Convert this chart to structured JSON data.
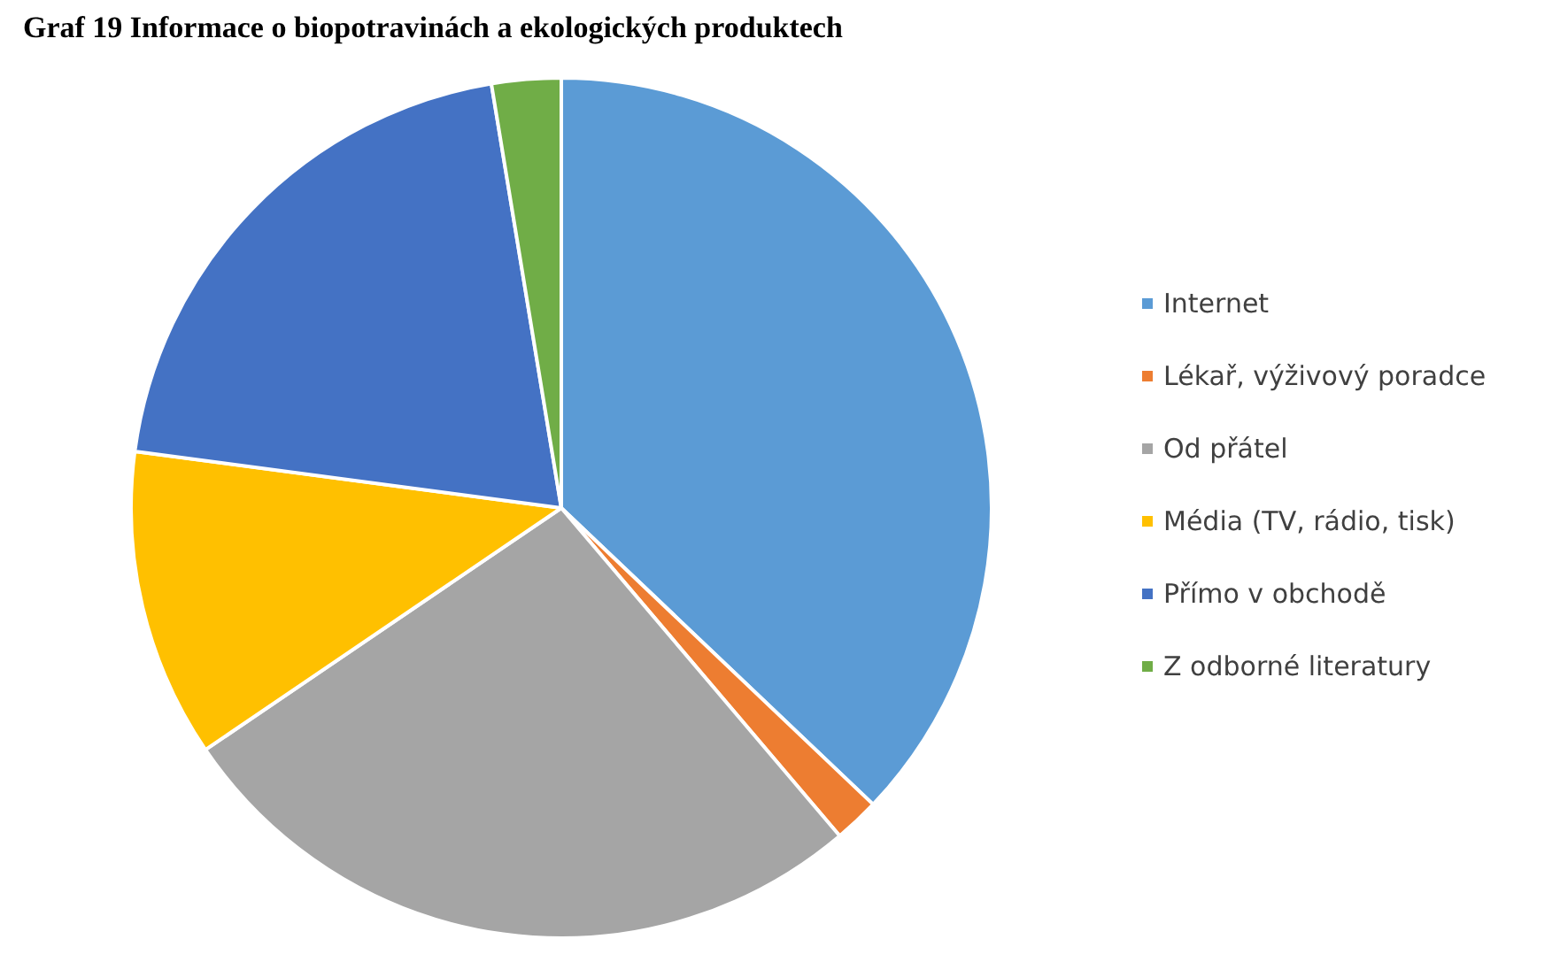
{
  "chart_data": {
    "type": "pie",
    "title": "Graf 19 Informace o biopotravinách a ekologických produktech",
    "categories": [
      "Internet",
      "Lékař, výživový poradce",
      "Od přátel",
      "Média (TV, rádio, tisk)",
      "Přímo v obchodě",
      "Z odborné literatury"
    ],
    "values": [
      37.1,
      1.7,
      26.7,
      11.6,
      20.3,
      2.6
    ],
    "colors": [
      "#5b9bd5",
      "#ed7d31",
      "#a5a5a5",
      "#ffc000",
      "#4472c4",
      "#70ad47"
    ],
    "legend": "right"
  }
}
